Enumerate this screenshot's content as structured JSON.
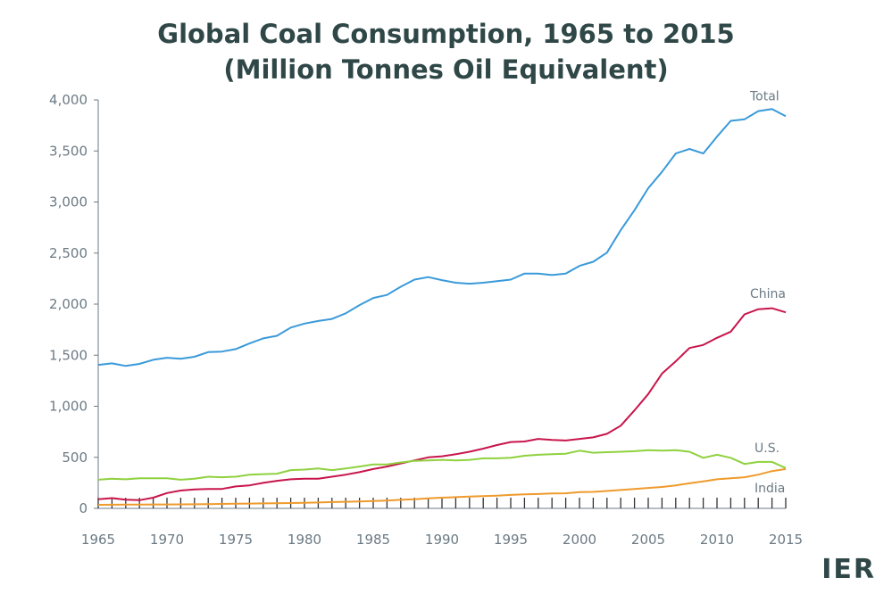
{
  "chart_data": {
    "type": "line",
    "title_line1": "Global Coal Consumption, 1965 to 2015",
    "title_line2": "(Million Tonnes Oil Equivalent)",
    "xlabel": "",
    "ylabel": "",
    "xlim": [
      1965,
      2015
    ],
    "ylim": [
      0,
      4000
    ],
    "x_ticks": [
      1965,
      1970,
      1975,
      1980,
      1985,
      1990,
      1995,
      2000,
      2005,
      2010,
      2015
    ],
    "y_ticks": [
      0,
      500,
      1000,
      1500,
      2000,
      2500,
      3000,
      3500,
      4000
    ],
    "y_tick_labels": [
      "0",
      "500",
      "1,000",
      "1,500",
      "2,000",
      "2,500",
      "3,000",
      "3,500",
      "4,000"
    ],
    "grid": false,
    "legend": "inline labels at line ends",
    "x": [
      1965,
      1966,
      1967,
      1968,
      1969,
      1970,
      1971,
      1972,
      1973,
      1974,
      1975,
      1976,
      1977,
      1978,
      1979,
      1980,
      1981,
      1982,
      1983,
      1984,
      1985,
      1986,
      1987,
      1988,
      1989,
      1990,
      1991,
      1992,
      1993,
      1994,
      1995,
      1996,
      1997,
      1998,
      1999,
      2000,
      2001,
      2002,
      2003,
      2004,
      2005,
      2006,
      2007,
      2008,
      2009,
      2010,
      2011,
      2012,
      2013,
      2014,
      2015
    ],
    "series": [
      {
        "name": "Total",
        "color": "#3a9ad9",
        "values": [
          1405,
          1420,
          1395,
          1415,
          1455,
          1475,
          1465,
          1485,
          1530,
          1535,
          1560,
          1615,
          1665,
          1690,
          1770,
          1810,
          1835,
          1855,
          1910,
          1990,
          2060,
          2090,
          2170,
          2240,
          2265,
          2235,
          2210,
          2200,
          2210,
          2225,
          2240,
          2300,
          2300,
          2285,
          2300,
          2375,
          2415,
          2505,
          2725,
          2920,
          3135,
          3295,
          3475,
          3520,
          3475,
          3640,
          3795,
          3810,
          3890,
          3910,
          3840
        ]
      },
      {
        "name": "China",
        "color": "#c8154b",
        "values": [
          90,
          100,
          85,
          80,
          105,
          150,
          175,
          185,
          190,
          190,
          215,
          225,
          250,
          270,
          285,
          290,
          290,
          310,
          330,
          355,
          385,
          410,
          440,
          470,
          500,
          510,
          530,
          555,
          585,
          620,
          650,
          655,
          680,
          670,
          665,
          680,
          695,
          730,
          810,
          960,
          1120,
          1320,
          1440,
          1570,
          1600,
          1670,
          1730,
          1900,
          1950,
          1960,
          1920
        ]
      },
      {
        "name": "U.S.",
        "color": "#8fd13f",
        "values": [
          280,
          290,
          285,
          295,
          295,
          295,
          280,
          290,
          310,
          305,
          310,
          330,
          335,
          340,
          375,
          380,
          390,
          375,
          390,
          410,
          430,
          430,
          450,
          465,
          470,
          475,
          470,
          475,
          490,
          490,
          495,
          515,
          525,
          530,
          535,
          565,
          545,
          550,
          555,
          560,
          570,
          565,
          570,
          555,
          495,
          525,
          495,
          435,
          455,
          455,
          395
        ]
      },
      {
        "name": "India",
        "color": "#ef9a2c",
        "values": [
          35,
          36,
          37,
          37,
          38,
          38,
          39,
          40,
          41,
          44,
          46,
          47,
          49,
          51,
          52,
          55,
          58,
          62,
          65,
          68,
          72,
          77,
          84,
          90,
          98,
          105,
          110,
          115,
          120,
          125,
          132,
          137,
          141,
          146,
          148,
          160,
          162,
          170,
          180,
          190,
          200,
          210,
          225,
          245,
          265,
          285,
          295,
          305,
          330,
          365,
          385
        ]
      }
    ]
  },
  "brand": "IER"
}
